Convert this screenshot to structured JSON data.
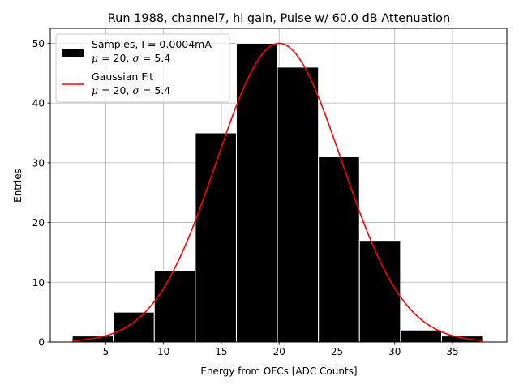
{
  "chart_data": {
    "type": "bar",
    "title": "Run 1988, channel7, hi gain, Pulse w/ 60.0 dB Attenuation",
    "xlabel": "Energy from OFCs [ADC Counts]",
    "ylabel": "Entries",
    "xlim": [
      0.2,
      39.7
    ],
    "ylim": [
      0,
      52.5
    ],
    "xticks": [
      5,
      10,
      15,
      20,
      25,
      30,
      35
    ],
    "yticks": [
      0,
      10,
      20,
      30,
      40,
      50
    ],
    "grid": true,
    "histogram": {
      "name": "Samples",
      "color": "#000000",
      "bin_edges": [
        2.1,
        5.65,
        9.2,
        12.75,
        16.3,
        19.85,
        23.4,
        26.95,
        30.5,
        34.05,
        37.6
      ],
      "counts": [
        1,
        5,
        12,
        35,
        50,
        46,
        31,
        17,
        2,
        1
      ]
    },
    "fit": {
      "name": "Gaussian Fit",
      "color": "#ff0000",
      "mu": 20,
      "sigma": 5.4,
      "amplitude": 50,
      "x_range": [
        2.1,
        37.6
      ]
    },
    "legend": {
      "position": "top-left",
      "entries": [
        {
          "line1": "Samples, I = 0.0004mA",
          "mu_label": "μ",
          "mu_value": " = 20, ",
          "sigma_label": "σ",
          "sigma_value": " = 5.4"
        },
        {
          "line1": "Gaussian Fit",
          "mu_label": "μ",
          "mu_value": " = 20, ",
          "sigma_label": "σ",
          "sigma_value": " = 5.4"
        }
      ]
    }
  }
}
